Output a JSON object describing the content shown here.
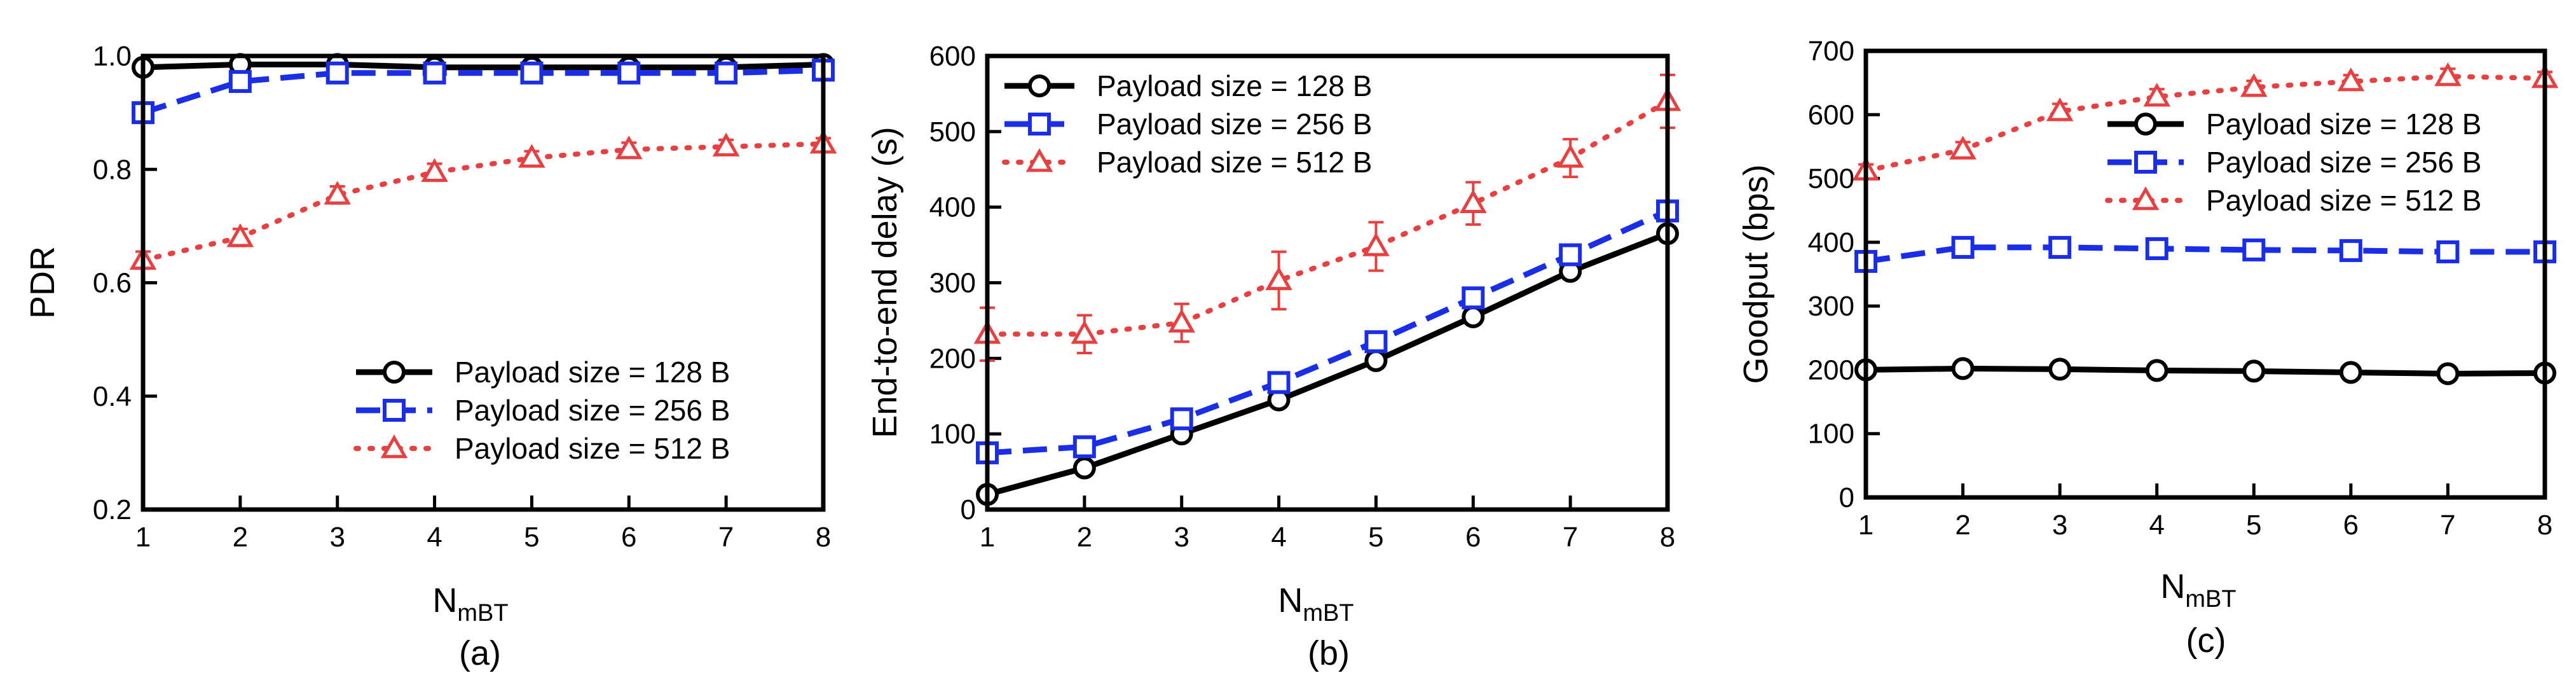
{
  "chart_data": [
    {
      "type": "line",
      "panel_label": "(a)",
      "xlabel": "N",
      "xlabel_sub": "mBT",
      "ylabel": "PDR",
      "x": [
        1,
        2,
        3,
        4,
        5,
        6,
        7,
        8
      ],
      "xlim": [
        1,
        8
      ],
      "ylim": [
        0.2,
        1.0
      ],
      "yticks": [
        0.2,
        0.4,
        0.6,
        0.8,
        1.0
      ],
      "ytick_labels": [
        "0.2",
        "0.4",
        "0.6",
        "0.8",
        "1.0"
      ],
      "legend_position": "bottom-right",
      "series": [
        {
          "name": "Payload size = 128 B",
          "color": "#000000",
          "marker": "circle",
          "dash": "solid",
          "values": [
            0.98,
            0.985,
            0.985,
            0.98,
            0.98,
            0.98,
            0.98,
            0.985
          ],
          "errors": [
            0,
            0,
            0,
            0,
            0,
            0,
            0,
            0
          ]
        },
        {
          "name": "Payload size = 256 B",
          "color": "#1a2ee8",
          "marker": "square",
          "dash": "dashed",
          "values": [
            0.9,
            0.955,
            0.97,
            0.97,
            0.97,
            0.97,
            0.97,
            0.975
          ],
          "errors": [
            0,
            0,
            0,
            0,
            0,
            0,
            0,
            0
          ]
        },
        {
          "name": "Payload size = 512 B",
          "color": "#e84040",
          "marker": "triangle",
          "dash": "dotted",
          "values": [
            0.64,
            0.68,
            0.755,
            0.795,
            0.82,
            0.835,
            0.84,
            0.845
          ],
          "errors": [
            0.015,
            0.015,
            0.015,
            0.015,
            0.012,
            0.012,
            0.012,
            0.01
          ]
        }
      ]
    },
    {
      "type": "line",
      "panel_label": "(b)",
      "xlabel": "N",
      "xlabel_sub": "mBT",
      "ylabel": "End-to-end delay (s)",
      "x": [
        1,
        2,
        3,
        4,
        5,
        6,
        7,
        8
      ],
      "xlim": [
        1,
        8
      ],
      "ylim": [
        0,
        600
      ],
      "yticks": [
        0,
        100,
        200,
        300,
        400,
        500,
        600
      ],
      "ytick_labels": [
        "0",
        "100",
        "200",
        "300",
        "400",
        "500",
        "600"
      ],
      "legend_position": "top-left",
      "series": [
        {
          "name": "Payload size = 128 B",
          "color": "#000000",
          "marker": "circle",
          "dash": "solid",
          "values": [
            20,
            55,
            100,
            145,
            197,
            255,
            315,
            365
          ],
          "errors": [
            0,
            0,
            0,
            0,
            0,
            0,
            0,
            0
          ]
        },
        {
          "name": "Payload size = 256 B",
          "color": "#1a2ee8",
          "marker": "square",
          "dash": "dashed",
          "values": [
            75,
            83,
            120,
            168,
            222,
            280,
            337,
            395
          ],
          "errors": [
            0,
            0,
            0,
            0,
            0,
            0,
            0,
            0
          ]
        },
        {
          "name": "Payload size = 512 B",
          "color": "#e84040",
          "marker": "triangle",
          "dash": "dotted",
          "values": [
            232,
            232,
            247,
            303,
            348,
            405,
            465,
            540
          ],
          "errors": [
            35,
            25,
            25,
            38,
            32,
            28,
            25,
            35
          ]
        }
      ]
    },
    {
      "type": "line",
      "panel_label": "(c)",
      "xlabel": "N",
      "xlabel_sub": "mBT",
      "ylabel": "Goodput (bps)",
      "x": [
        1,
        2,
        3,
        4,
        5,
        6,
        7,
        8
      ],
      "xlim": [
        1,
        8
      ],
      "ylim": [
        0,
        700
      ],
      "yticks": [
        0,
        100,
        200,
        300,
        400,
        500,
        600,
        700
      ],
      "ytick_labels": [
        "0",
        "100",
        "200",
        "300",
        "400",
        "500",
        "600",
        "700"
      ],
      "legend_position": "top-right",
      "series": [
        {
          "name": "Payload size = 128 B",
          "color": "#000000",
          "marker": "circle",
          "dash": "solid",
          "values": [
            200,
            202,
            201,
            199,
            198,
            196,
            194,
            195
          ],
          "errors": [
            0,
            0,
            0,
            0,
            0,
            0,
            0,
            0
          ]
        },
        {
          "name": "Payload size = 256 B",
          "color": "#1a2ee8",
          "marker": "square",
          "dash": "dashed",
          "values": [
            370,
            392,
            392,
            390,
            388,
            387,
            385,
            385
          ],
          "errors": [
            0,
            0,
            0,
            0,
            0,
            0,
            0,
            0
          ]
        },
        {
          "name": "Payload size = 512 B",
          "color": "#e84040",
          "marker": "triangle",
          "dash": "dotted",
          "values": [
            512,
            545,
            605,
            628,
            643,
            652,
            660,
            657
          ],
          "errors": [
            10,
            12,
            12,
            12,
            10,
            10,
            12,
            10
          ]
        }
      ]
    }
  ]
}
